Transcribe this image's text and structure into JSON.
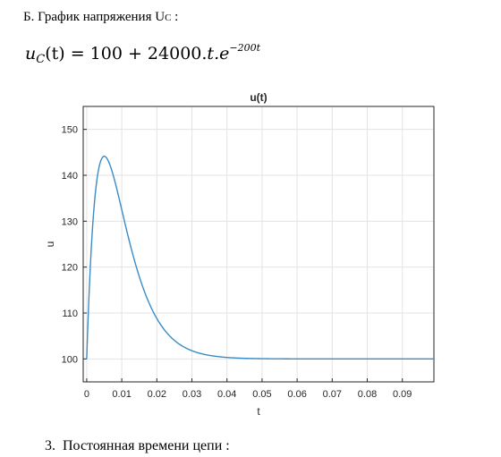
{
  "heading": {
    "prefix": "Б. График напряжения U",
    "subscript": "C",
    "suffix": " :"
  },
  "formula": {
    "var": "u",
    "sub": "C",
    "arg": "(t)",
    "equals": " = 100 + 24000.",
    "t": "t",
    "dot_e": ".e",
    "exp": "−200t"
  },
  "chart_data": {
    "type": "line",
    "title": "u(t)",
    "xlabel": "t",
    "ylabel": "u",
    "xlim": [
      -0.001,
      0.099
    ],
    "ylim": [
      95,
      155
    ],
    "xticks": [
      0,
      0.01,
      0.02,
      0.03,
      0.04,
      0.05,
      0.06,
      0.07,
      0.08,
      0.09
    ],
    "xtick_labels": [
      "0",
      "0.01",
      "0.02",
      "0.03",
      "0.04",
      "0.05",
      "0.06",
      "0.07",
      "0.08",
      "0.09"
    ],
    "yticks": [
      100,
      110,
      120,
      130,
      140,
      150
    ],
    "ytick_labels": [
      "100",
      "110",
      "120",
      "130",
      "140",
      "150"
    ],
    "grid": true,
    "line_color": "#3a8cc6",
    "series": [
      {
        "function": "u(t) = 100 + 24000·t·e^(−200t)",
        "x_range": [
          0,
          0.099
        ]
      }
    ]
  },
  "footer": {
    "number": "3.",
    "text": "Постоянная времени цепи :"
  }
}
